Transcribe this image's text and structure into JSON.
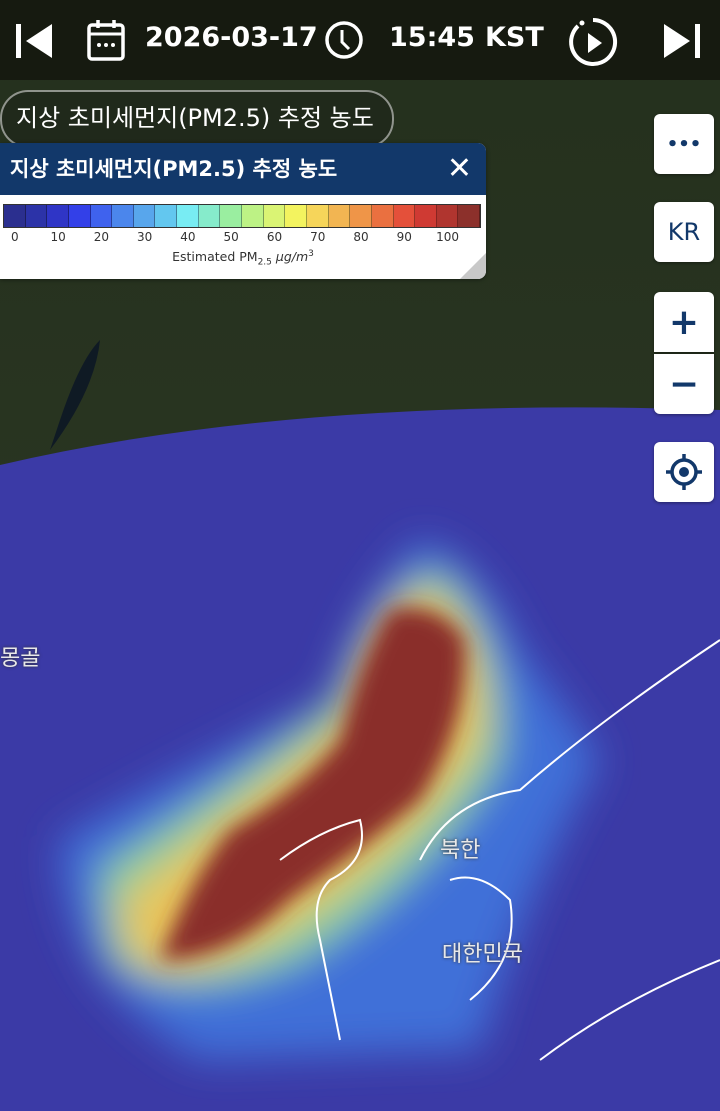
{
  "topbar": {
    "date": "2026-03-17",
    "time": "15:45",
    "timezone": "KST",
    "icons": [
      "skip-back-icon",
      "calendar-icon",
      "clock-icon",
      "play-loop-icon",
      "skip-forward-icon"
    ]
  },
  "layer_chip": "지상 초미세먼지(PM2.5) 추정 농도",
  "legend": {
    "title": "지상 초미세먼지(PM2.5) 추정 농도",
    "close": "✕",
    "ticks": [
      "0",
      "10",
      "20",
      "30",
      "40",
      "50",
      "60",
      "70",
      "80",
      "90",
      "100"
    ],
    "unit_prefix": "Estimated PM",
    "unit_sub": "2.5",
    "unit_suffix": " μg/m",
    "unit_sup": "3",
    "colors": [
      "#2b2f8f",
      "#2c33a8",
      "#2f35c6",
      "#3340e8",
      "#3f62ee",
      "#4b86ec",
      "#58a6ec",
      "#63c7ef",
      "#78ecf3",
      "#86ebcb",
      "#9aeea0",
      "#bdf285",
      "#daf474",
      "#f3f35f",
      "#f6d55a",
      "#f2b552",
      "#ef9548",
      "#ea7040",
      "#e4503a",
      "#cf3a33",
      "#b0352f",
      "#8c302b"
    ]
  },
  "controls": {
    "more": "•••",
    "language": "KR",
    "zoom_in": "+",
    "zoom_out": "−"
  },
  "map_labels": {
    "mongolia": "몽골",
    "north_korea": "북한",
    "south_korea": "대한민국"
  }
}
